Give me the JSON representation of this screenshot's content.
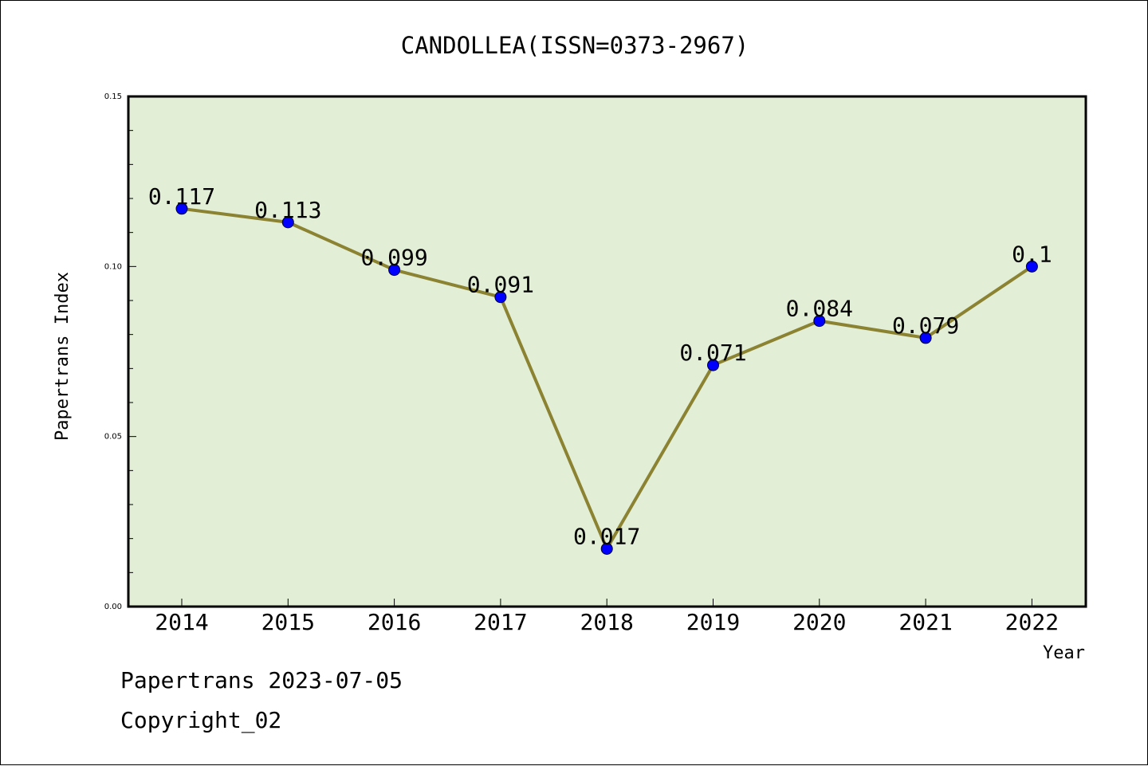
{
  "chart_data": {
    "type": "line",
    "title": "CANDOLLEA(ISSN=0373-2967)",
    "xlabel": "Year",
    "ylabel": "Papertrans Index",
    "categories": [
      "2014",
      "2015",
      "2016",
      "2017",
      "2018",
      "2019",
      "2020",
      "2021",
      "2022"
    ],
    "values": [
      0.117,
      0.113,
      0.099,
      0.091,
      0.017,
      0.071,
      0.084,
      0.079,
      0.1
    ],
    "data_labels": [
      "0.117",
      "0.113",
      "0.099",
      "0.091",
      "0.017",
      "0.071",
      "0.084",
      "0.079",
      "0.1"
    ],
    "ylim": [
      0,
      0.15
    ],
    "yticks": [
      "0.00",
      "0.05",
      "0.10",
      "0.15"
    ],
    "grid": false,
    "colors": {
      "plot_background": "#e2efd6",
      "line": "#8b8232",
      "marker": "#0000ff"
    }
  },
  "footer": {
    "date_text": "Papertrans 2023-07-05",
    "copyright_text": "Copyright_02"
  }
}
